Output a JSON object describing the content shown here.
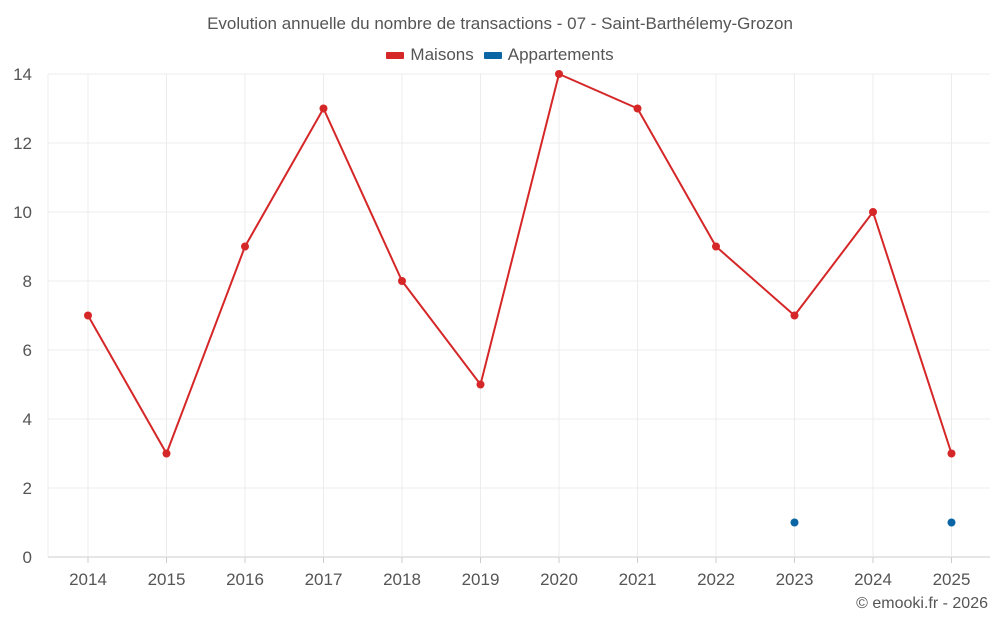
{
  "chart_data": {
    "type": "line",
    "title": "Evolution annuelle du nombre de transactions - 07 - Saint-Barthélemy-Grozon",
    "categories": [
      "2014",
      "2015",
      "2016",
      "2017",
      "2018",
      "2019",
      "2020",
      "2021",
      "2022",
      "2023",
      "2024",
      "2025"
    ],
    "series": [
      {
        "name": "Maisons",
        "color": "#d62728",
        "values": [
          7,
          3,
          9,
          13,
          8,
          5,
          14,
          13,
          9,
          7,
          10,
          3
        ]
      },
      {
        "name": "Appartements",
        "color": "#0a65a5",
        "values": [
          null,
          null,
          null,
          null,
          null,
          null,
          null,
          null,
          null,
          1,
          null,
          1
        ]
      }
    ],
    "ylim": [
      0,
      14
    ],
    "yticks": [
      0,
      2,
      4,
      6,
      8,
      10,
      12,
      14
    ],
    "grid": true,
    "legend_position": "top-center"
  },
  "credit": "© emooki.fr - 2026"
}
